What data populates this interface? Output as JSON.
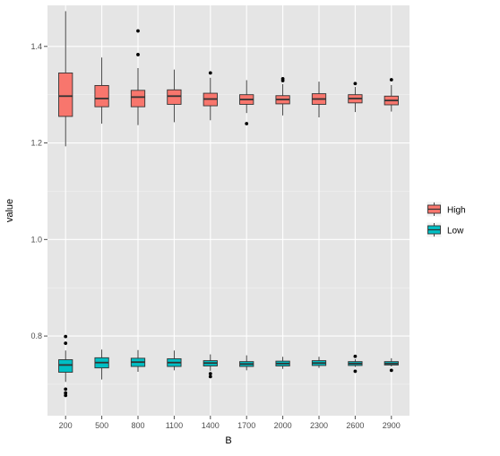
{
  "chart_data": {
    "type": "boxplot",
    "xlabel": "B",
    "ylabel": "value",
    "categories": [
      "200",
      "500",
      "800",
      "1100",
      "1400",
      "1700",
      "2000",
      "2300",
      "2600",
      "2900"
    ],
    "yticks": [
      "0.8",
      "1.0",
      "1.2",
      "1.4"
    ],
    "ytick_values": [
      0.8,
      1.0,
      1.2,
      1.4
    ],
    "ylim": [
      0.635,
      1.485
    ],
    "grid": true,
    "legend_position": "right",
    "legend_title": "",
    "series": [
      {
        "name": "High",
        "color": "#F8766D",
        "boxes": [
          {
            "whisker_low": 1.193,
            "q1": 1.255,
            "median": 1.297,
            "q3": 1.345,
            "whisker_high": 1.473,
            "outliers": []
          },
          {
            "whisker_low": 1.24,
            "q1": 1.275,
            "median": 1.292,
            "q3": 1.319,
            "whisker_high": 1.377,
            "outliers": []
          },
          {
            "whisker_low": 1.237,
            "q1": 1.275,
            "median": 1.295,
            "q3": 1.309,
            "whisker_high": 1.355,
            "outliers": [
              1.383,
              1.432
            ]
          },
          {
            "whisker_low": 1.243,
            "q1": 1.28,
            "median": 1.297,
            "q3": 1.31,
            "whisker_high": 1.352,
            "outliers": []
          },
          {
            "whisker_low": 1.247,
            "q1": 1.277,
            "median": 1.291,
            "q3": 1.303,
            "whisker_high": 1.335,
            "outliers": [
              1.345
            ]
          },
          {
            "whisker_low": 1.262,
            "q1": 1.28,
            "median": 1.29,
            "q3": 1.3,
            "whisker_high": 1.33,
            "outliers": [
              1.24
            ]
          },
          {
            "whisker_low": 1.257,
            "q1": 1.281,
            "median": 1.29,
            "q3": 1.298,
            "whisker_high": 1.322,
            "outliers": [
              1.329,
              1.333
            ]
          },
          {
            "whisker_low": 1.253,
            "q1": 1.28,
            "median": 1.291,
            "q3": 1.302,
            "whisker_high": 1.327,
            "outliers": []
          },
          {
            "whisker_low": 1.264,
            "q1": 1.283,
            "median": 1.292,
            "q3": 1.3,
            "whisker_high": 1.316,
            "outliers": [
              1.323
            ]
          },
          {
            "whisker_low": 1.265,
            "q1": 1.279,
            "median": 1.288,
            "q3": 1.297,
            "whisker_high": 1.32,
            "outliers": [
              1.331
            ]
          }
        ]
      },
      {
        "name": "Low",
        "color": "#00BFC4",
        "boxes": [
          {
            "whisker_low": 0.705,
            "q1": 0.725,
            "median": 0.74,
            "q3": 0.751,
            "whisker_high": 0.77,
            "outliers": [
              0.677,
              0.682,
              0.69,
              0.785,
              0.799
            ]
          },
          {
            "whisker_low": 0.71,
            "q1": 0.734,
            "median": 0.745,
            "q3": 0.755,
            "whisker_high": 0.772,
            "outliers": []
          },
          {
            "whisker_low": 0.726,
            "q1": 0.737,
            "median": 0.746,
            "q3": 0.754,
            "whisker_high": 0.771,
            "outliers": []
          },
          {
            "whisker_low": 0.729,
            "q1": 0.737,
            "median": 0.745,
            "q3": 0.753,
            "whisker_high": 0.77,
            "outliers": []
          },
          {
            "whisker_low": 0.728,
            "q1": 0.738,
            "median": 0.744,
            "q3": 0.749,
            "whisker_high": 0.762,
            "outliers": [
              0.716,
              0.722
            ]
          },
          {
            "whisker_low": 0.729,
            "q1": 0.737,
            "median": 0.742,
            "q3": 0.747,
            "whisker_high": 0.76,
            "outliers": []
          },
          {
            "whisker_low": 0.732,
            "q1": 0.738,
            "median": 0.743,
            "q3": 0.748,
            "whisker_high": 0.757,
            "outliers": []
          },
          {
            "whisker_low": 0.734,
            "q1": 0.739,
            "median": 0.744,
            "q3": 0.749,
            "whisker_high": 0.757,
            "outliers": []
          },
          {
            "whisker_low": 0.736,
            "q1": 0.739,
            "median": 0.743,
            "q3": 0.747,
            "whisker_high": 0.752,
            "outliers": [
              0.727,
              0.758
            ]
          },
          {
            "whisker_low": 0.737,
            "q1": 0.74,
            "median": 0.743,
            "q3": 0.747,
            "whisker_high": 0.754,
            "outliers": [
              0.729
            ]
          }
        ]
      }
    ]
  }
}
